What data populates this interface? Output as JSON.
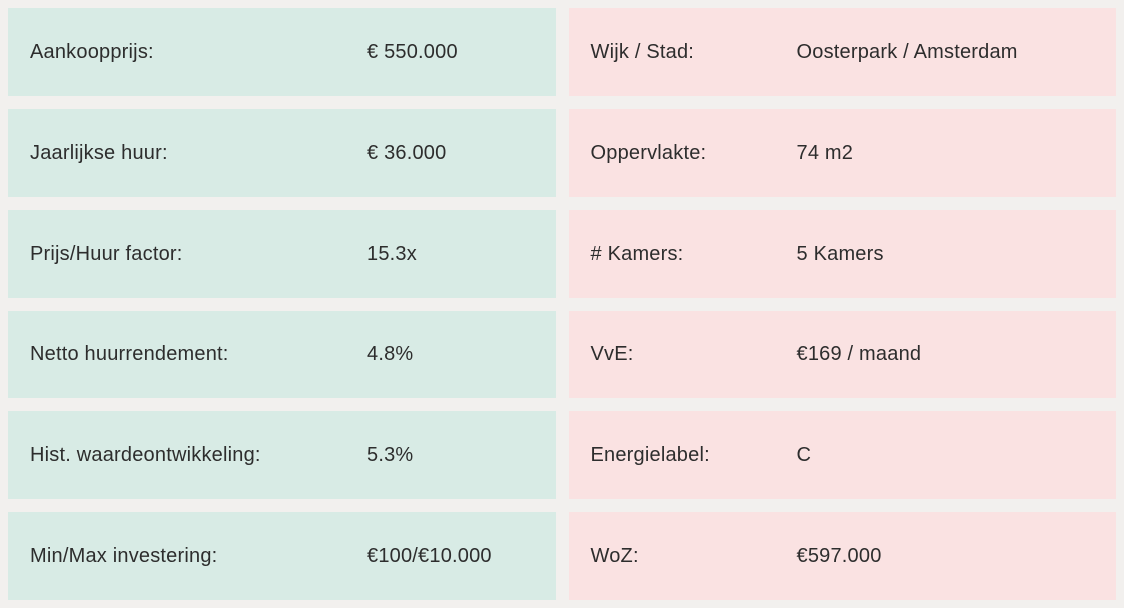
{
  "colors": {
    "page_background": "#f2f0ee",
    "left_row_background": "#d8ebe5",
    "right_row_background": "#fae2e2",
    "text": "#2d2d2d"
  },
  "left_column": {
    "rows": [
      {
        "label": "Aankoopprijs:",
        "value": "€ 550.000"
      },
      {
        "label": "Jaarlijkse huur:",
        "value": "€ 36.000"
      },
      {
        "label": "Prijs/Huur factor:",
        "value": "15.3x"
      },
      {
        "label": "Netto huurrendement:",
        "value": "4.8%"
      },
      {
        "label": "Hist. waardeontwikkeling:",
        "value": "5.3%"
      },
      {
        "label": "Min/Max investering:",
        "value": "€100/€10.000"
      }
    ]
  },
  "right_column": {
    "rows": [
      {
        "label": "Wijk / Stad:",
        "value": "Oosterpark / Amsterdam"
      },
      {
        "label": "Oppervlakte:",
        "value": "74 m2"
      },
      {
        "label": "# Kamers:",
        "value": "5 Kamers"
      },
      {
        "label": "VvE:",
        "value": "€169 / maand"
      },
      {
        "label": "Energielabel:",
        "value": "C"
      },
      {
        "label": "WoZ:",
        "value": "€597.000"
      }
    ]
  }
}
